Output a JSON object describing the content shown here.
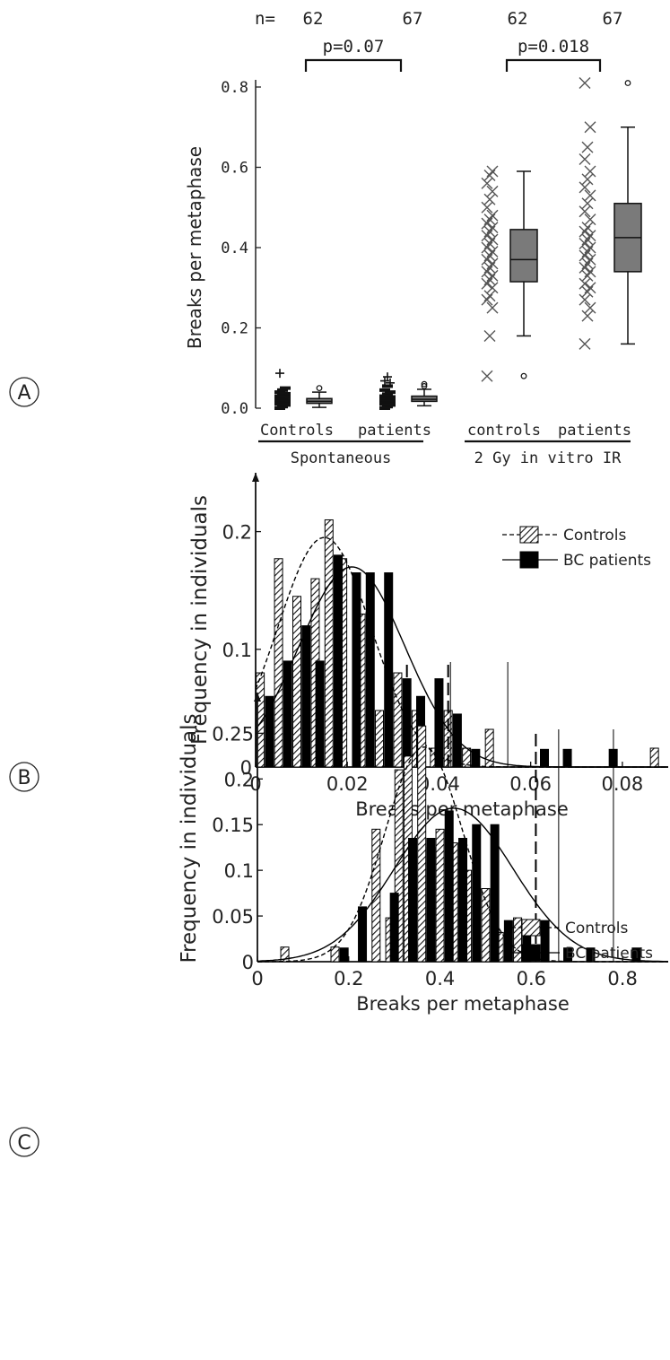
{
  "chart_data": [
    {
      "panel": "A",
      "type": "box",
      "ylabel": "Breaks per metaphase",
      "ylim": [
        0,
        0.8
      ],
      "yticks": [
        0.0,
        0.2,
        0.4,
        0.6,
        0.8
      ],
      "ytick_labels": [
        "0.0",
        "0.2",
        "0.4",
        "0.6",
        "0.8"
      ],
      "n_prefix": "n=",
      "groups": [
        {
          "label": "Controls",
          "n": "62",
          "box": {
            "q1": 0.012,
            "median": 0.017,
            "q3": 0.024,
            "whisker_low": 0.002,
            "whisker_high": 0.04
          },
          "outliers": [
            0.05
          ]
        },
        {
          "label": "patients",
          "n": "67",
          "box": {
            "q1": 0.017,
            "median": 0.022,
            "q3": 0.03,
            "whisker_low": 0.006,
            "whisker_high": 0.047
          },
          "outliers": [
            0.055,
            0.06
          ]
        },
        {
          "label": "controls",
          "n": "62",
          "box": {
            "q1": 0.315,
            "median": 0.37,
            "q3": 0.445,
            "whisker_low": 0.18,
            "whisker_high": 0.59
          },
          "outliers": [
            0.08
          ]
        },
        {
          "label": "patients",
          "n": "67",
          "box": {
            "q1": 0.34,
            "median": 0.425,
            "q3": 0.51,
            "whisker_low": 0.16,
            "whisker_high": 0.7
          },
          "outliers": [
            0.81
          ]
        }
      ],
      "scatter_points": [
        [
          0.0,
          0.004,
          0.008,
          0.01,
          0.012,
          0.014,
          0.016,
          0.018,
          0.02,
          0.022,
          0.025,
          0.028,
          0.03,
          0.033,
          0.036,
          0.04,
          0.045,
          0.05,
          0.087
        ],
        [
          0.0,
          0.004,
          0.008,
          0.01,
          0.012,
          0.014,
          0.016,
          0.018,
          0.02,
          0.022,
          0.025,
          0.028,
          0.03,
          0.035,
          0.04,
          0.045,
          0.055,
          0.063,
          0.068,
          0.078
        ],
        [
          0.08,
          0.18,
          0.25,
          0.27,
          0.28,
          0.3,
          0.31,
          0.32,
          0.33,
          0.34,
          0.35,
          0.36,
          0.37,
          0.38,
          0.39,
          0.4,
          0.41,
          0.42,
          0.43,
          0.44,
          0.45,
          0.46,
          0.47,
          0.48,
          0.5,
          0.52,
          0.54,
          0.56,
          0.58,
          0.59
        ],
        [
          0.16,
          0.23,
          0.25,
          0.27,
          0.29,
          0.3,
          0.31,
          0.33,
          0.34,
          0.35,
          0.36,
          0.37,
          0.38,
          0.39,
          0.4,
          0.41,
          0.42,
          0.43,
          0.44,
          0.45,
          0.47,
          0.49,
          0.51,
          0.53,
          0.55,
          0.57,
          0.59,
          0.62,
          0.65,
          0.7,
          0.81
        ]
      ],
      "pvalues": [
        {
          "text": "p=0.07",
          "groups": [
            0,
            1
          ]
        },
        {
          "text": "p=0.018",
          "groups": [
            2,
            3
          ]
        }
      ],
      "categories": [
        {
          "label": "Spontaneous",
          "groups": [
            0,
            1
          ]
        },
        {
          "label": "2 Gy in vitro IR",
          "groups": [
            2,
            3
          ]
        }
      ],
      "box_color": "#7a7a7a"
    },
    {
      "panel": "B",
      "type": "bar",
      "xlabel": "Breaks per metaphase",
      "ylabel": "Frequency in individuals",
      "xlim": [
        0,
        0.09
      ],
      "ylim": [
        0,
        0.25
      ],
      "xticks": [
        0,
        0.02,
        0.04,
        0.06,
        0.08
      ],
      "xtick_labels": [
        "0",
        "0.02",
        "0.04",
        "0.06",
        "0.08"
      ],
      "yticks": [
        0,
        0.1,
        0.2
      ],
      "ytick_labels": [
        "0",
        "0.1",
        "0.2"
      ],
      "legend": {
        "position": "top-right",
        "entries": [
          "Controls",
          "BC patients"
        ]
      },
      "series": [
        {
          "name": "Controls",
          "style": "hatched",
          "line": "dashed",
          "x": [
            0.001,
            0.005,
            0.009,
            0.013,
            0.016,
            0.019,
            0.023,
            0.027,
            0.031,
            0.035,
            0.039,
            0.042,
            0.046,
            0.051,
            0.087
          ],
          "values": [
            0.08,
            0.177,
            0.145,
            0.16,
            0.21,
            0.177,
            0.13,
            0.048,
            0.08,
            0.048,
            0.016,
            0.048,
            0.016,
            0.032,
            0.016
          ],
          "fit": {
            "mean": 0.015,
            "sd": 0.0102,
            "peak": 0.195
          },
          "marker_lines": [
            0.033,
            0.042
          ]
        },
        {
          "name": "BC patients",
          "style": "solid",
          "line": "solid",
          "x": [
            0.003,
            0.007,
            0.011,
            0.014,
            0.018,
            0.022,
            0.025,
            0.029,
            0.033,
            0.036,
            0.04,
            0.044,
            0.048,
            0.063,
            0.068,
            0.078
          ],
          "values": [
            0.06,
            0.09,
            0.12,
            0.09,
            0.18,
            0.165,
            0.165,
            0.165,
            0.075,
            0.06,
            0.075,
            0.045,
            0.015,
            0.015,
            0.015,
            0.015
          ],
          "fit": {
            "mean": 0.021,
            "sd": 0.0115,
            "peak": 0.17
          },
          "marker_lines": [
            0.0425,
            0.055
          ]
        }
      ]
    },
    {
      "panel": "C",
      "type": "bar",
      "xlabel": "Breaks per metaphase",
      "ylabel": "Frequency in individuals",
      "xlim": [
        0,
        0.9
      ],
      "ylim": [
        0,
        0.27
      ],
      "xticks": [
        0,
        0.2,
        0.4,
        0.6,
        0.8
      ],
      "xtick_labels": [
        "0",
        "0.2",
        "0.4",
        "0.6",
        "0.8"
      ],
      "yticks": [
        0,
        0.05,
        0.1,
        0.15,
        0.2,
        0.25
      ],
      "ytick_labels": [
        "0",
        "0.05",
        "0.1",
        "0.15",
        "0.2",
        "0.25"
      ],
      "legend": {
        "position": "top-right",
        "entries": [
          "Controls",
          "BC patients"
        ]
      },
      "series": [
        {
          "name": "Controls",
          "style": "hatched",
          "line": "dashed",
          "x": [
            0.06,
            0.17,
            0.26,
            0.29,
            0.31,
            0.33,
            0.36,
            0.38,
            0.4,
            0.43,
            0.46,
            0.5,
            0.53,
            0.57
          ],
          "values": [
            0.016,
            0.016,
            0.145,
            0.048,
            0.21,
            0.225,
            0.258,
            0.125,
            0.145,
            0.13,
            0.1,
            0.08,
            0.032,
            0.048
          ],
          "fit": {
            "mean": 0.365,
            "sd": 0.085,
            "peak": 0.235
          },
          "marker_lines": [
            0.61
          ]
        },
        {
          "name": "BC patients",
          "style": "solid",
          "line": "solid",
          "x": [
            0.19,
            0.23,
            0.3,
            0.34,
            0.38,
            0.42,
            0.45,
            0.48,
            0.52,
            0.55,
            0.59,
            0.63,
            0.68,
            0.73,
            0.83
          ],
          "values": [
            0.015,
            0.06,
            0.075,
            0.135,
            0.135,
            0.165,
            0.135,
            0.15,
            0.15,
            0.045,
            0.03,
            0.045,
            0.015,
            0.015,
            0.015
          ],
          "fit": {
            "mean": 0.43,
            "sd": 0.13,
            "peak": 0.168
          },
          "marker_lines": [
            0.66,
            0.78
          ]
        }
      ]
    }
  ],
  "panel_labels": [
    "A",
    "B",
    "C"
  ]
}
